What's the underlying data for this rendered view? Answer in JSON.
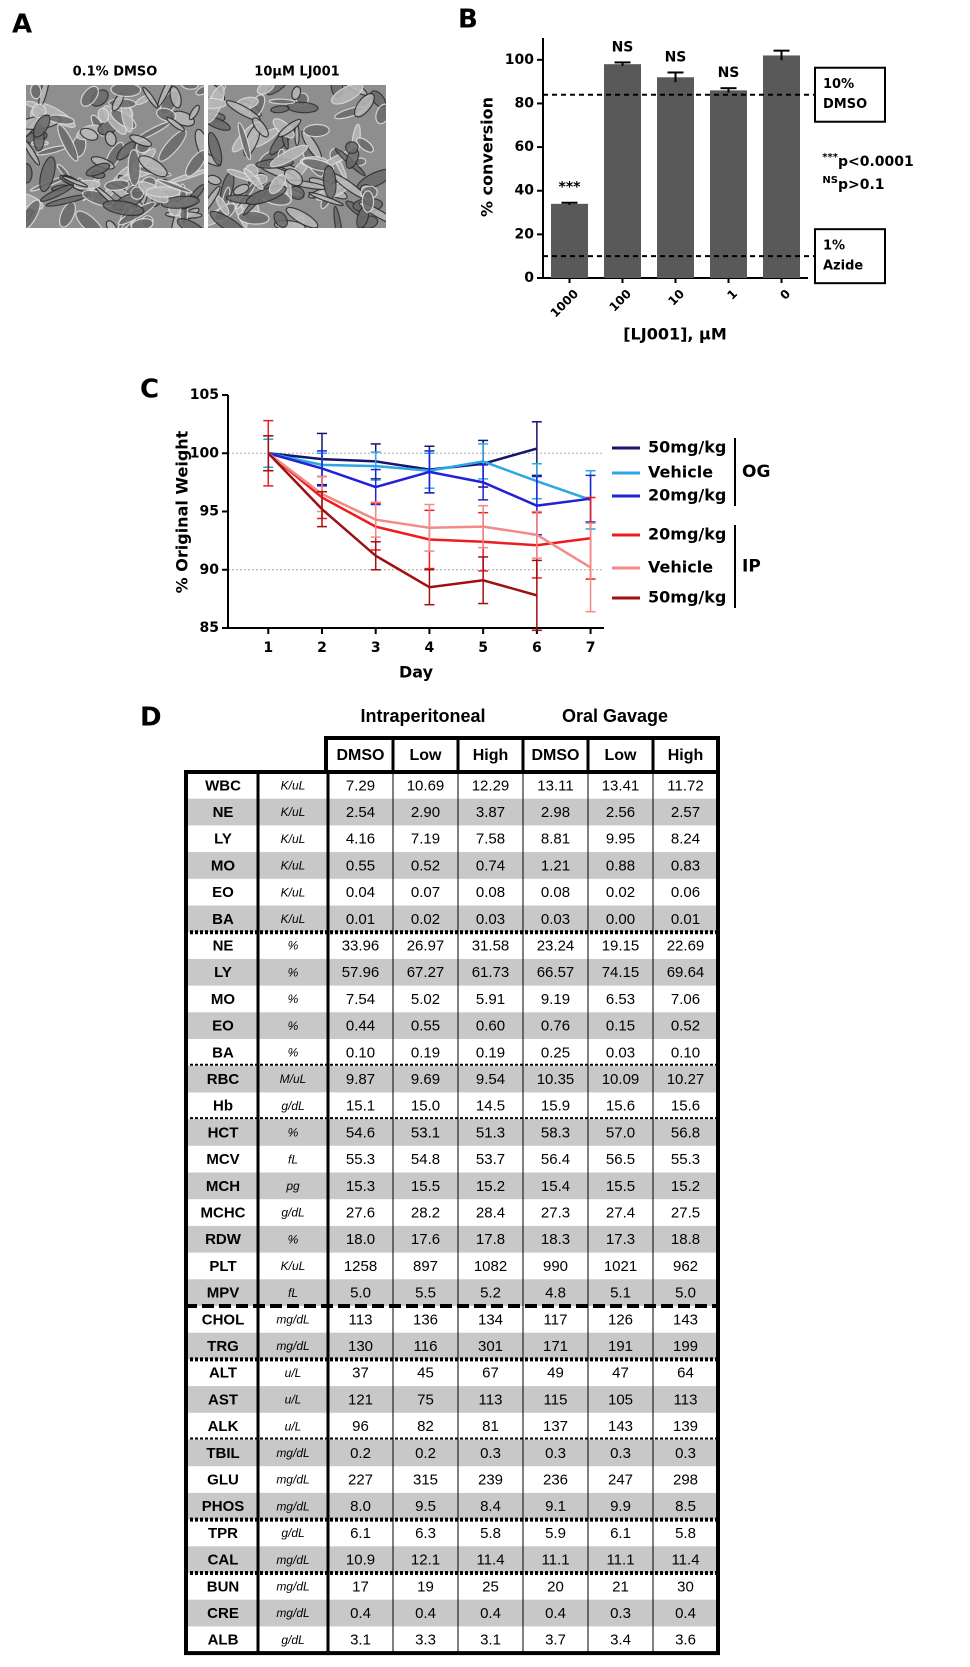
{
  "panels": [
    "A",
    "B",
    "C",
    "D"
  ],
  "micrographs": [
    "0.1% DMSO",
    "10μM LJ001"
  ],
  "chart_data": [
    {
      "type": "bar",
      "ylabel": "% conversion",
      "xlabel": "[LJ001],  μM",
      "categories": [
        "1000",
        "100",
        "10",
        "1",
        "0"
      ],
      "values": [
        34,
        98,
        92,
        86,
        102
      ],
      "errors": [
        0.5,
        0.8,
        2.2,
        1,
        2.2
      ],
      "annotations": [
        "***",
        "NS",
        "NS",
        "NS",
        null
      ],
      "color": "#595959",
      "ylim": [
        0,
        110
      ],
      "yticks": [
        0,
        20,
        40,
        60,
        80,
        100
      ],
      "reference_lines": [
        {
          "value": 84,
          "label": [
            "10%",
            "DMSO"
          ]
        },
        {
          "value": 10,
          "label": [
            "1%",
            "Azide"
          ]
        }
      ],
      "significance": [
        {
          "symbol": "***",
          "text": "p<0.0001"
        },
        {
          "symbol": "NS",
          "text": "p>0.1"
        }
      ]
    },
    {
      "type": "line",
      "xlabel": "Day",
      "ylabel": "% Original Weight",
      "x": [
        1,
        2,
        3,
        4,
        5,
        6,
        7
      ],
      "xlim": [
        0.25,
        7.25
      ],
      "xticks": [
        1,
        2,
        3,
        4,
        5,
        6,
        7
      ],
      "ylim": [
        85,
        105
      ],
      "yticks": [
        85,
        90,
        95,
        100,
        105
      ],
      "grid": [
        90,
        100
      ],
      "series": [
        {
          "name": "50mg/kg",
          "group": "OG",
          "color": "#15156b",
          "values": [
            100,
            99.5,
            99.3,
            98.6,
            99.1,
            100.4,
            null
          ],
          "errors": [
            1.5,
            2.2,
            1.5,
            2,
            2,
            2.3,
            null
          ]
        },
        {
          "name": "Vehicle",
          "group": "OG",
          "color": "#2ba6e6",
          "values": [
            100,
            99,
            98.9,
            98.5,
            99.3,
            97.6,
            96.0
          ],
          "errors": [
            1.2,
            1,
            1.2,
            1.5,
            1.5,
            1.5,
            2.5
          ]
        },
        {
          "name": "20mg/kg",
          "group": "OG",
          "color": "#2222d6",
          "values": [
            100,
            98.7,
            97.1,
            98.4,
            97.5,
            95.5,
            96.1
          ],
          "errors": [
            1.5,
            1.5,
            1.5,
            1.8,
            1.5,
            2.5,
            2
          ]
        },
        {
          "name": "20mg/kg",
          "group": "IP",
          "color": "#ee1c1c",
          "values": [
            100,
            96.2,
            93.7,
            92.6,
            92.4,
            92.1,
            92.7
          ],
          "errors": [
            2.8,
            1.8,
            2,
            2.5,
            2.5,
            2.8,
            3.5
          ]
        },
        {
          "name": "Vehicle",
          "group": "IP",
          "color": "#f28a8a",
          "values": [
            100,
            96.5,
            94.3,
            93.6,
            93.7,
            93.0,
            90.2
          ],
          "errors": [
            1.5,
            1.5,
            1.5,
            2,
            1.8,
            2,
            3.8
          ]
        },
        {
          "name": "50mg/kg",
          "group": "IP",
          "color": "#a01010",
          "values": [
            100,
            95.2,
            91.2,
            88.5,
            89.1,
            87.8,
            null
          ],
          "errors": [
            1.5,
            1.5,
            1.2,
            1.5,
            2,
            3,
            null
          ]
        }
      ]
    }
  ],
  "table": {
    "group_headers": [
      "Intraperitoneal",
      "Oral Gavage"
    ],
    "columns": [
      "DMSO",
      "Low",
      "High",
      "DMSO",
      "Low",
      "High"
    ],
    "sections": [
      [
        [
          "WBC",
          "K/uL",
          "7.29",
          "10.69",
          "12.29",
          "13.11",
          "13.41",
          "11.72"
        ],
        [
          "NE",
          "K/uL",
          "2.54",
          "2.90",
          "3.87",
          "2.98",
          "2.56",
          "2.57"
        ],
        [
          "LY",
          "K/uL",
          "4.16",
          "7.19",
          "7.58",
          "8.81",
          "9.95",
          "8.24"
        ],
        [
          "MO",
          "K/uL",
          "0.55",
          "0.52",
          "0.74",
          "1.21",
          "0.88",
          "0.83"
        ],
        [
          "EO",
          "K/uL",
          "0.04",
          "0.07",
          "0.08",
          "0.08",
          "0.02",
          "0.06"
        ],
        [
          "BA",
          "K/uL",
          "0.01",
          "0.02",
          "0.03",
          "0.03",
          "0.00",
          "0.01"
        ]
      ],
      [
        [
          "NE",
          "%",
          "33.96",
          "26.97",
          "31.58",
          "23.24",
          "19.15",
          "22.69"
        ],
        [
          "LY",
          "%",
          "57.96",
          "67.27",
          "61.73",
          "66.57",
          "74.15",
          "69.64"
        ],
        [
          "MO",
          "%",
          "7.54",
          "5.02",
          "5.91",
          "9.19",
          "6.53",
          "7.06"
        ],
        [
          "EO",
          "%",
          "0.44",
          "0.55",
          "0.60",
          "0.76",
          "0.15",
          "0.52"
        ],
        [
          "BA",
          "%",
          "0.10",
          "0.19",
          "0.19",
          "0.25",
          "0.03",
          "0.10"
        ]
      ],
      [
        [
          "RBC",
          "M/uL",
          "9.87",
          "9.69",
          "9.54",
          "10.35",
          "10.09",
          "10.27"
        ],
        [
          "Hb",
          "g/dL",
          "15.1",
          "15.0",
          "14.5",
          "15.9",
          "15.6",
          "15.6"
        ]
      ],
      [
        [
          "HCT",
          "%",
          "54.6",
          "53.1",
          "51.3",
          "58.3",
          "57.0",
          "56.8"
        ],
        [
          "MCV",
          "fL",
          "55.3",
          "54.8",
          "53.7",
          "56.4",
          "56.5",
          "55.3"
        ],
        [
          "MCH",
          "pg",
          "15.3",
          "15.5",
          "15.2",
          "15.4",
          "15.5",
          "15.2"
        ],
        [
          "MCHC",
          "g/dL",
          "27.6",
          "28.2",
          "28.4",
          "27.3",
          "27.4",
          "27.5"
        ],
        [
          "RDW",
          "%",
          "18.0",
          "17.6",
          "17.8",
          "18.3",
          "17.3",
          "18.8"
        ],
        [
          "PLT",
          "K/uL",
          "1258",
          "897",
          "1082",
          "990",
          "1021",
          "962"
        ],
        [
          "MPV",
          "fL",
          "5.0",
          "5.5",
          "5.2",
          "4.8",
          "5.1",
          "5.0"
        ]
      ],
      [
        [
          "CHOL",
          "mg/dL",
          "113",
          "136",
          "134",
          "117",
          "126",
          "143"
        ],
        [
          "TRG",
          "mg/dL",
          "130",
          "116",
          "301",
          "171",
          "191",
          "199"
        ]
      ],
      [
        [
          "ALT",
          "u/L",
          "37",
          "45",
          "67",
          "49",
          "47",
          "64"
        ],
        [
          "AST",
          "u/L",
          "121",
          "75",
          "113",
          "115",
          "105",
          "113"
        ],
        [
          "ALK",
          "u/L",
          "96",
          "82",
          "81",
          "137",
          "143",
          "139"
        ]
      ],
      [
        [
          "TBIL",
          "mg/dL",
          "0.2",
          "0.2",
          "0.3",
          "0.3",
          "0.3",
          "0.3"
        ],
        [
          "GLU",
          "mg/dL",
          "227",
          "315",
          "239",
          "236",
          "247",
          "298"
        ],
        [
          "PHOS",
          "mg/dL",
          "8.0",
          "9.5",
          "8.4",
          "9.1",
          "9.9",
          "8.5"
        ]
      ],
      [
        [
          "TPR",
          "g/dL",
          "6.1",
          "6.3",
          "5.8",
          "5.9",
          "6.1",
          "5.8"
        ],
        [
          "CAL",
          "mg/dL",
          "10.9",
          "12.1",
          "11.4",
          "11.1",
          "11.1",
          "11.4"
        ]
      ],
      [
        [
          "BUN",
          "mg/dL",
          "17",
          "19",
          "25",
          "20",
          "21",
          "30"
        ],
        [
          "CRE",
          "mg/dL",
          "0.4",
          "0.4",
          "0.4",
          "0.4",
          "0.3",
          "0.4"
        ],
        [
          "ALB",
          "g/dL",
          "3.1",
          "3.3",
          "3.1",
          "3.7",
          "3.4",
          "3.6"
        ]
      ]
    ]
  }
}
